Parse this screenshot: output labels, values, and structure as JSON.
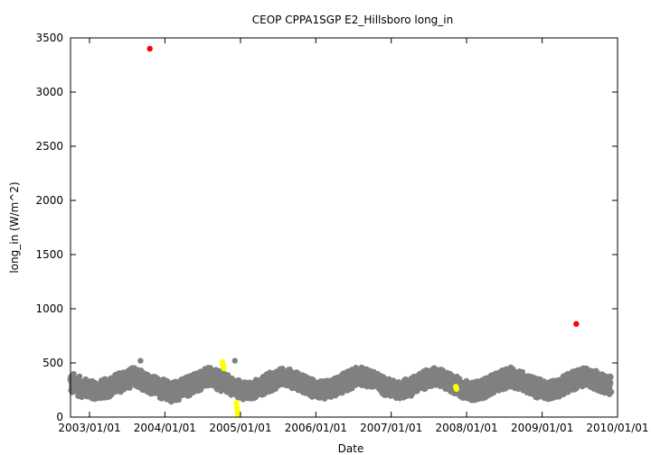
{
  "chart_data": {
    "type": "scatter",
    "title": "CEOP CPPA1SGP E2_Hillsboro  long_in",
    "xlabel": "Date",
    "ylabel": "long_in (W/m^2)",
    "xlim": [
      "2002-10-01",
      "2010-01-01"
    ],
    "ylim": [
      0,
      3500
    ],
    "yticks": [
      0,
      500,
      1000,
      1500,
      2000,
      2500,
      3000,
      3500
    ],
    "xticks": [
      "2003/01/01",
      "2004/01/01",
      "2005/01/01",
      "2006/01/01",
      "2007/01/01",
      "2008/01/01",
      "2009/01/01",
      "2010/01/01"
    ],
    "grid": false,
    "legend": "none",
    "series": [
      {
        "color": "#808080",
        "style": "dense-band",
        "x": [
          "2002-10-01",
          "2002-12-01",
          "2003-02-01",
          "2003-04-01",
          "2003-06-01",
          "2003-08-01",
          "2003-10-01",
          "2003-12-01",
          "2004-02-01",
          "2004-04-01",
          "2004-06-01",
          "2004-08-01",
          "2004-10-01",
          "2004-12-01",
          "2005-02-01",
          "2005-04-01",
          "2005-06-01",
          "2005-08-01",
          "2005-10-01",
          "2005-12-01",
          "2006-02-01",
          "2006-04-01",
          "2006-06-01",
          "2006-08-01",
          "2006-10-01",
          "2006-12-01",
          "2007-02-01",
          "2007-04-01",
          "2007-06-01",
          "2007-08-01",
          "2007-10-01",
          "2007-12-01",
          "2008-02-01",
          "2008-04-01",
          "2008-06-01",
          "2008-08-01",
          "2008-10-01",
          "2008-12-01",
          "2009-02-01",
          "2009-04-01",
          "2009-06-01",
          "2009-08-01",
          "2009-10-01",
          "2009-12-01"
        ],
        "y_low": [
          210,
          180,
          160,
          180,
          230,
          280,
          240,
          180,
          140,
          170,
          230,
          280,
          240,
          180,
          150,
          190,
          240,
          300,
          250,
          190,
          160,
          190,
          240,
          300,
          260,
          200,
          160,
          190,
          250,
          290,
          250,
          180,
          150,
          180,
          240,
          280,
          240,
          180,
          160,
          190,
          250,
          290,
          240,
          200
        ],
        "y_high": [
          420,
          360,
          330,
          360,
          420,
          460,
          420,
          360,
          330,
          360,
          420,
          460,
          420,
          360,
          320,
          360,
          420,
          460,
          420,
          360,
          330,
          360,
          420,
          470,
          430,
          370,
          330,
          360,
          420,
          460,
          420,
          360,
          320,
          360,
          420,
          460,
          420,
          360,
          330,
          370,
          430,
          460,
          420,
          380
        ],
        "extra_points": [
          {
            "x": "2003-09-05",
            "y": 520
          },
          {
            "x": "2004-12-05",
            "y": 520
          }
        ]
      },
      {
        "color": "#ffff00",
        "points": [
          {
            "x": "2004-10-05",
            "y": 510
          },
          {
            "x": "2004-10-08",
            "y": 480
          },
          {
            "x": "2004-10-12",
            "y": 450
          },
          {
            "x": "2004-12-12",
            "y": 130
          },
          {
            "x": "2004-12-15",
            "y": 90
          },
          {
            "x": "2004-12-18",
            "y": 50
          },
          {
            "x": "2004-12-20",
            "y": 20
          },
          {
            "x": "2007-11-10",
            "y": 280
          },
          {
            "x": "2007-11-13",
            "y": 260
          }
        ]
      },
      {
        "color": "#ff0000",
        "points": [
          {
            "x": "2003-10-20",
            "y": 3400
          },
          {
            "x": "2009-06-15",
            "y": 860
          }
        ]
      }
    ]
  }
}
